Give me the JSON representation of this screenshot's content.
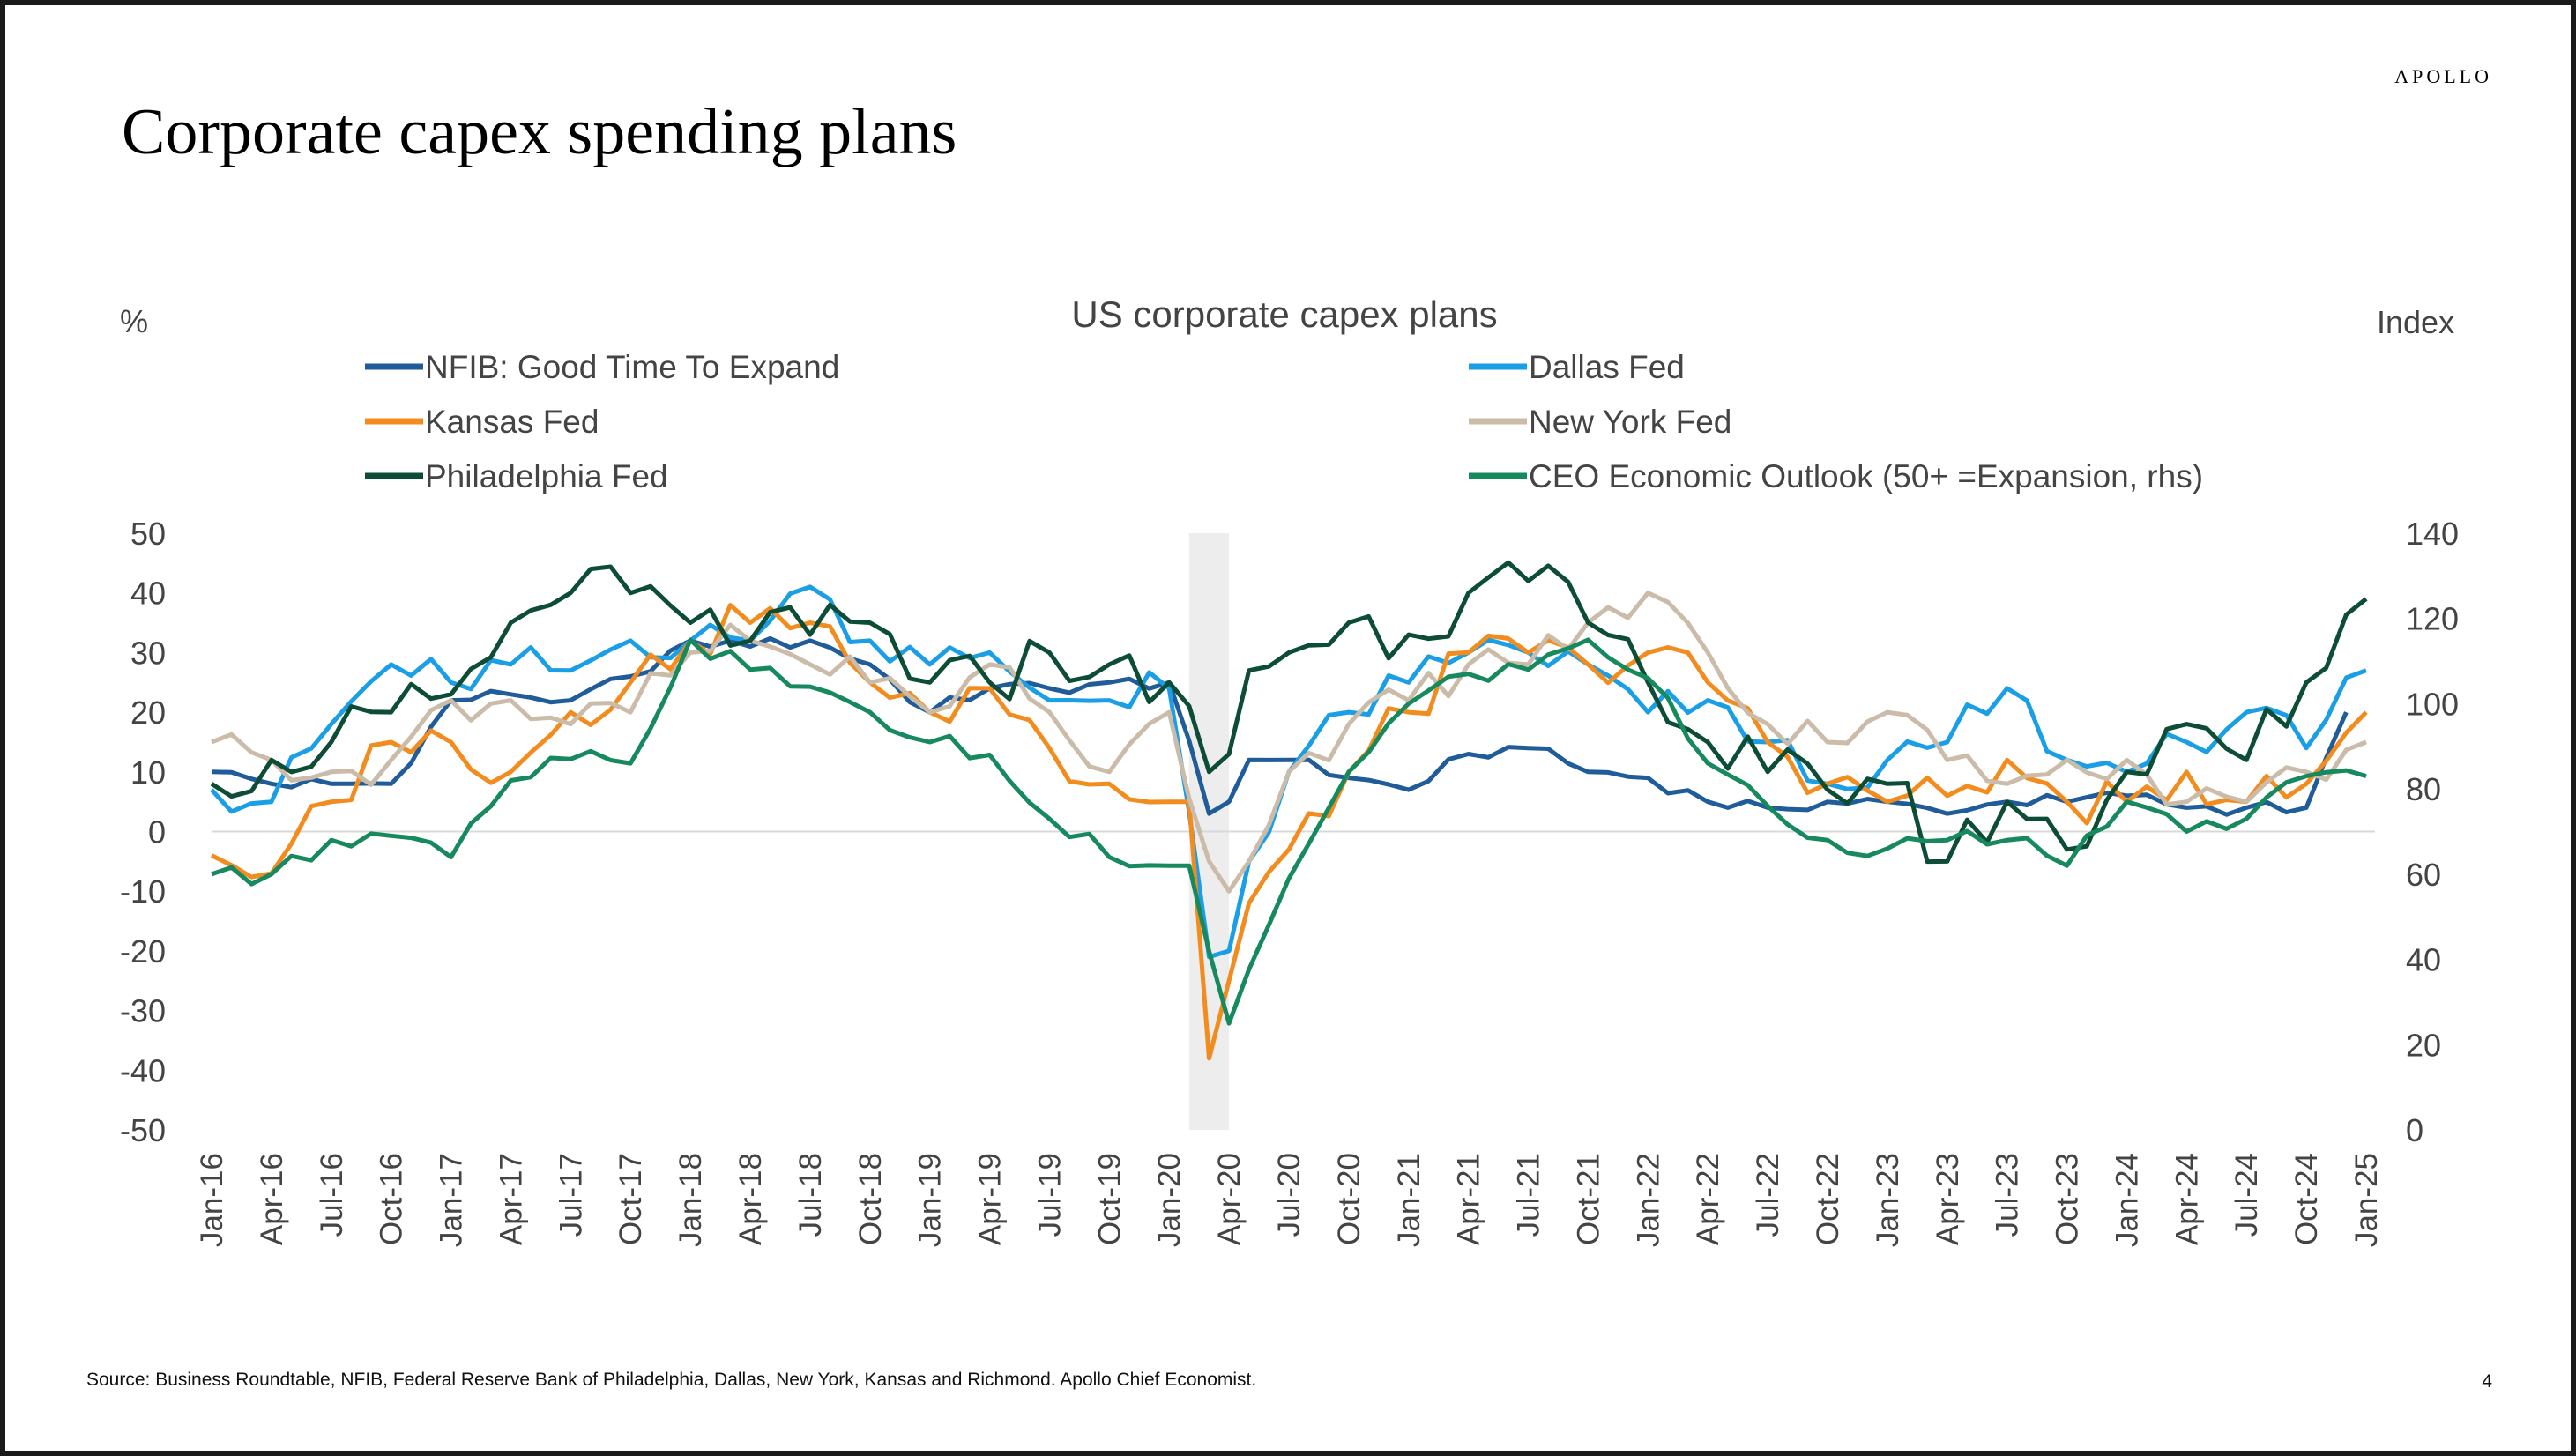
{
  "brand": "APOLLO",
  "title": "Corporate capex spending plans",
  "source": "Source: Business Roundtable, NFIB, Federal Reserve Bank of Philadelphia, Dallas, New York, Kansas and Richmond. Apollo Chief Economist.",
  "page_number": "4",
  "chart_data": {
    "type": "line",
    "title": "US corporate capex plans",
    "left_axis_unit": "%",
    "right_axis_unit": "Index",
    "ylim": [
      -50,
      50
    ],
    "y_ticks": [
      50,
      40,
      30,
      20,
      10,
      0,
      -10,
      -20,
      -30,
      -40,
      -50
    ],
    "y2lim": [
      0,
      140
    ],
    "y2_ticks": [
      140,
      120,
      100,
      80,
      60,
      40,
      20,
      0
    ],
    "x_start": "Jan-16",
    "x_end": "Jan-25",
    "x_tick_labels": [
      "Jan-16",
      "Apr-16",
      "Jul-16",
      "Oct-16",
      "Jan-17",
      "Apr-17",
      "Jul-17",
      "Oct-17",
      "Jan-18",
      "Apr-18",
      "Jul-18",
      "Oct-18",
      "Jan-19",
      "Apr-19",
      "Jul-19",
      "Oct-19",
      "Jan-20",
      "Apr-20",
      "Jul-20",
      "Oct-20",
      "Jan-21",
      "Apr-21",
      "Jul-21",
      "Oct-21",
      "Jan-22",
      "Apr-22",
      "Jul-22",
      "Oct-22",
      "Jan-23",
      "Apr-23",
      "Jul-23",
      "Oct-23",
      "Jan-24",
      "Apr-24",
      "Jul-24",
      "Oct-24",
      "Jan-25"
    ],
    "recession_shading": {
      "from": "Feb-20",
      "to": "Apr-20"
    },
    "grid": false,
    "legend_position": "top",
    "series": [
      {
        "name": "NFIB: Good Time To Expand",
        "color": "#1f5c99",
        "axis": "left",
        "key_points": [
          [
            "Jan-16",
            10
          ],
          [
            "Apr-16",
            8
          ],
          [
            "Jul-16",
            8
          ],
          [
            "Oct-16",
            8
          ],
          [
            "Jan-17",
            22
          ],
          [
            "Apr-17",
            23
          ],
          [
            "Jul-17",
            22
          ],
          [
            "Oct-17",
            26
          ],
          [
            "Jan-18",
            32
          ],
          [
            "Apr-18",
            31
          ],
          [
            "Jul-18",
            32
          ],
          [
            "Oct-18",
            28
          ],
          [
            "Jan-19",
            20
          ],
          [
            "Apr-19",
            24
          ],
          [
            "Jul-19",
            24
          ],
          [
            "Oct-19",
            25
          ],
          [
            "Jan-20",
            25
          ],
          [
            "Mar-20",
            3
          ],
          [
            "Apr-20",
            5
          ],
          [
            "May-20",
            12
          ],
          [
            "Jul-20",
            12
          ],
          [
            "Oct-20",
            9
          ],
          [
            "Jan-21",
            7
          ],
          [
            "Apr-21",
            13
          ],
          [
            "Jul-21",
            14
          ],
          [
            "Oct-21",
            10
          ],
          [
            "Jan-22",
            9
          ],
          [
            "Apr-22",
            5
          ],
          [
            "Jul-22",
            4
          ],
          [
            "Oct-22",
            5
          ],
          [
            "Jan-23",
            5
          ],
          [
            "Apr-23",
            3
          ],
          [
            "Jul-23",
            5
          ],
          [
            "Oct-23",
            5
          ],
          [
            "Jan-24",
            6
          ],
          [
            "Apr-24",
            4
          ],
          [
            "Jul-24",
            4
          ],
          [
            "Oct-24",
            4
          ],
          [
            "Dec-24",
            20
          ]
        ]
      },
      {
        "name": "Dallas Fed",
        "color": "#1a9ee6",
        "axis": "left",
        "key_points": [
          [
            "Jan-16",
            7
          ],
          [
            "Apr-16",
            5
          ],
          [
            "Jul-16",
            18
          ],
          [
            "Oct-16",
            28
          ],
          [
            "Jan-17",
            25
          ],
          [
            "Apr-17",
            28
          ],
          [
            "Jul-17",
            27
          ],
          [
            "Oct-17",
            32
          ],
          [
            "Jan-18",
            32
          ],
          [
            "Apr-18",
            32
          ],
          [
            "Jul-18",
            41
          ],
          [
            "Oct-18",
            32
          ],
          [
            "Jan-19",
            28
          ],
          [
            "Apr-19",
            30
          ],
          [
            "Jul-19",
            22
          ],
          [
            "Oct-19",
            22
          ],
          [
            "Jan-20",
            24
          ],
          [
            "Mar-20",
            -21
          ],
          [
            "Apr-20",
            -20
          ],
          [
            "May-20",
            -5
          ],
          [
            "Jul-20",
            10
          ],
          [
            "Oct-20",
            20
          ],
          [
            "Jan-21",
            25
          ],
          [
            "Apr-21",
            30
          ],
          [
            "Jul-21",
            30
          ],
          [
            "Oct-21",
            28
          ],
          [
            "Jan-22",
            20
          ],
          [
            "Apr-22",
            22
          ],
          [
            "Jul-22",
            15
          ],
          [
            "Oct-22",
            8
          ],
          [
            "Jan-23",
            12
          ],
          [
            "Apr-23",
            15
          ],
          [
            "Jul-23",
            24
          ],
          [
            "Oct-23",
            12
          ],
          [
            "Jan-24",
            10
          ],
          [
            "Apr-24",
            15
          ],
          [
            "Jul-24",
            20
          ],
          [
            "Oct-24",
            14
          ],
          [
            "Jan-25",
            27
          ]
        ]
      },
      {
        "name": "Kansas Fed",
        "color": "#f28c1e",
        "axis": "left",
        "key_points": [
          [
            "Jan-16",
            -4
          ],
          [
            "Apr-16",
            -7
          ],
          [
            "Jul-16",
            5
          ],
          [
            "Oct-16",
            15
          ],
          [
            "Jan-17",
            15
          ],
          [
            "Apr-17",
            10
          ],
          [
            "Jul-17",
            20
          ],
          [
            "Oct-17",
            25
          ],
          [
            "Jan-18",
            32
          ],
          [
            "Apr-18",
            35
          ],
          [
            "Jul-18",
            35
          ],
          [
            "Oct-18",
            25
          ],
          [
            "Jan-19",
            20
          ],
          [
            "Apr-19",
            24
          ],
          [
            "Jul-19",
            14
          ],
          [
            "Oct-19",
            8
          ],
          [
            "Jan-20",
            5
          ],
          [
            "Feb-20",
            5
          ],
          [
            "Mar-20",
            -38
          ],
          [
            "Apr-20",
            -25
          ],
          [
            "May-20",
            -12
          ],
          [
            "Jul-20",
            -3
          ],
          [
            "Oct-20",
            10
          ],
          [
            "Jan-21",
            20
          ],
          [
            "Apr-21",
            30
          ],
          [
            "Jul-21",
            30
          ],
          [
            "Oct-21",
            28
          ],
          [
            "Jan-22",
            30
          ],
          [
            "Apr-22",
            25
          ],
          [
            "Jul-22",
            15
          ],
          [
            "Oct-22",
            8
          ],
          [
            "Jan-23",
            5
          ],
          [
            "Apr-23",
            6
          ],
          [
            "Jul-23",
            12
          ],
          [
            "Oct-23",
            5
          ],
          [
            "Jan-24",
            5
          ],
          [
            "Apr-24",
            10
          ],
          [
            "Jul-24",
            5
          ],
          [
            "Oct-24",
            8
          ],
          [
            "Jan-25",
            20
          ]
        ]
      },
      {
        "name": "New York Fed",
        "color": "#cbbba9",
        "axis": "left",
        "key_points": [
          [
            "Jan-16",
            15
          ],
          [
            "Apr-16",
            12
          ],
          [
            "Jul-16",
            10
          ],
          [
            "Oct-16",
            12
          ],
          [
            "Jan-17",
            22
          ],
          [
            "Apr-17",
            22
          ],
          [
            "Jul-17",
            18
          ],
          [
            "Oct-17",
            20
          ],
          [
            "Jan-18",
            30
          ],
          [
            "Apr-18",
            32
          ],
          [
            "Jul-18",
            28
          ],
          [
            "Oct-18",
            25
          ],
          [
            "Jan-19",
            20
          ],
          [
            "Apr-19",
            28
          ],
          [
            "Jul-19",
            20
          ],
          [
            "Oct-19",
            10
          ],
          [
            "Jan-20",
            20
          ],
          [
            "Mar-20",
            -5
          ],
          [
            "Apr-20",
            -10
          ],
          [
            "May-20",
            -5
          ],
          [
            "Jul-20",
            10
          ],
          [
            "Oct-20",
            18
          ],
          [
            "Jan-21",
            22
          ],
          [
            "Apr-21",
            28
          ],
          [
            "Jul-21",
            28
          ],
          [
            "Oct-21",
            35
          ],
          [
            "Jan-22",
            40
          ],
          [
            "Apr-22",
            30
          ],
          [
            "Jul-22",
            18
          ],
          [
            "Oct-22",
            15
          ],
          [
            "Jan-23",
            20
          ],
          [
            "Apr-23",
            12
          ],
          [
            "Jul-23",
            8
          ],
          [
            "Oct-23",
            12
          ],
          [
            "Jan-24",
            12
          ],
          [
            "Apr-24",
            5
          ],
          [
            "Jul-24",
            5
          ],
          [
            "Oct-24",
            10
          ],
          [
            "Jan-25",
            15
          ]
        ]
      },
      {
        "name": "Philadelphia Fed",
        "color": "#0d4d36",
        "axis": "left",
        "key_points": [
          [
            "Jan-16",
            8
          ],
          [
            "Apr-16",
            12
          ],
          [
            "Jul-16",
            15
          ],
          [
            "Oct-16",
            20
          ],
          [
            "Jan-17",
            23
          ],
          [
            "Apr-17",
            35
          ],
          [
            "Jul-17",
            40
          ],
          [
            "Oct-17",
            40
          ],
          [
            "Jan-18",
            35
          ],
          [
            "Apr-18",
            32
          ],
          [
            "Jul-18",
            33
          ],
          [
            "Oct-18",
            35
          ],
          [
            "Jan-19",
            25
          ],
          [
            "Apr-19",
            25
          ],
          [
            "Jul-19",
            30
          ],
          [
            "Oct-19",
            28
          ],
          [
            "Jan-20",
            25
          ],
          [
            "Mar-20",
            10
          ],
          [
            "Apr-20",
            13
          ],
          [
            "May-20",
            27
          ],
          [
            "Jul-20",
            30
          ],
          [
            "Oct-20",
            35
          ],
          [
            "Jan-21",
            33
          ],
          [
            "Apr-21",
            40
          ],
          [
            "Jul-21",
            42
          ],
          [
            "Oct-21",
            35
          ],
          [
            "Jan-22",
            25
          ],
          [
            "Apr-22",
            15
          ],
          [
            "Jul-22",
            10
          ],
          [
            "Oct-22",
            7
          ],
          [
            "Jan-23",
            8
          ],
          [
            "Apr-23",
            -5
          ],
          [
            "Jul-23",
            5
          ],
          [
            "Oct-23",
            -3
          ],
          [
            "Jan-24",
            10
          ],
          [
            "Apr-24",
            18
          ],
          [
            "Jul-24",
            12
          ],
          [
            "Oct-24",
            25
          ],
          [
            "Jan-25",
            39
          ]
        ]
      },
      {
        "name": "CEO Economic Outlook (50+ =Expansion, rhs)",
        "color": "#16895e",
        "axis": "right",
        "key_points": [
          [
            "Jan-16",
            60
          ],
          [
            "Apr-16",
            60
          ],
          [
            "Jul-16",
            68
          ],
          [
            "Oct-16",
            69
          ],
          [
            "Jan-17",
            64
          ],
          [
            "Apr-17",
            82
          ],
          [
            "Jul-17",
            87
          ],
          [
            "Oct-17",
            86
          ],
          [
            "Jan-18",
            115
          ],
          [
            "Apr-18",
            108
          ],
          [
            "Jul-18",
            104
          ],
          [
            "Oct-18",
            98
          ],
          [
            "Jan-19",
            91
          ],
          [
            "Apr-19",
            88
          ],
          [
            "Jul-19",
            73
          ],
          [
            "Oct-19",
            64
          ],
          [
            "Jan-20",
            62
          ],
          [
            "Feb-20",
            62
          ],
          [
            "Apr-20",
            25
          ],
          [
            "Jul-20",
            59
          ],
          [
            "Oct-20",
            84
          ],
          [
            "Jan-21",
            100
          ],
          [
            "Apr-21",
            107
          ],
          [
            "Jul-21",
            108
          ],
          [
            "Oct-21",
            115
          ],
          [
            "Jan-22",
            106
          ],
          [
            "Apr-22",
            86
          ],
          [
            "Jul-22",
            76
          ],
          [
            "Oct-22",
            68
          ],
          [
            "Jan-23",
            66
          ],
          [
            "Apr-23",
            68
          ],
          [
            "Jul-23",
            68
          ],
          [
            "Oct-23",
            62
          ],
          [
            "Jan-24",
            77
          ],
          [
            "Apr-24",
            70
          ],
          [
            "Jul-24",
            73
          ],
          [
            "Oct-24",
            83
          ],
          [
            "Jan-25",
            83
          ]
        ]
      }
    ]
  }
}
